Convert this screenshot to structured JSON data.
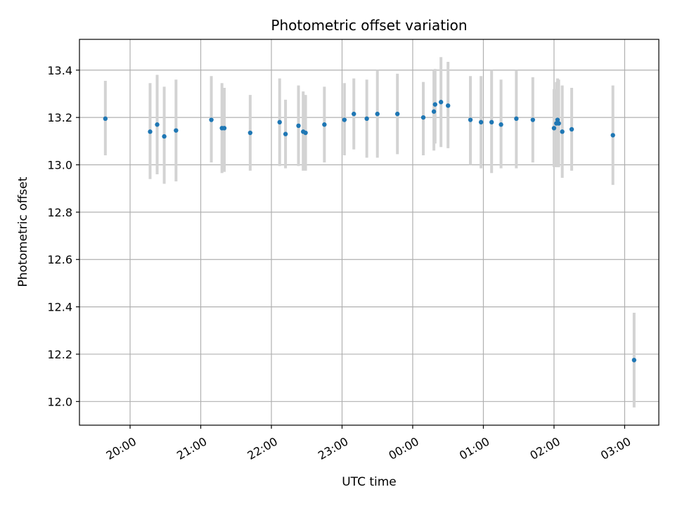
{
  "chart_data": {
    "type": "scatter",
    "title": "Photometric offset variation",
    "xlabel": "UTC time",
    "ylabel": "Photometric offset",
    "x_unit": "UTC time (HH:MM)",
    "xlim": [
      "19:17",
      "03:29"
    ],
    "ylim": [
      11.9,
      13.53
    ],
    "grid": true,
    "x_ticks": [
      "20:00",
      "21:00",
      "22:00",
      "23:00",
      "00:00",
      "01:00",
      "02:00",
      "03:00"
    ],
    "y_ticks": [
      12.0,
      12.2,
      12.4,
      12.6,
      12.8,
      13.0,
      13.2,
      13.4
    ],
    "y_tick_labels": [
      "12.0",
      "12.2",
      "12.4",
      "12.6",
      "12.8",
      "13.0",
      "13.2",
      "13.4"
    ],
    "colors": {
      "point": "#1f77b4",
      "error_bar": "#d3d3d3",
      "grid": "#b0b0b0"
    },
    "series": [
      {
        "points": [
          {
            "x": "19:39",
            "y": 13.195,
            "ylo": 13.04,
            "yhi": 13.355
          },
          {
            "x": "20:17",
            "y": 13.14,
            "ylo": 12.94,
            "yhi": 13.345
          },
          {
            "x": "20:23",
            "y": 13.17,
            "ylo": 12.96,
            "yhi": 13.38
          },
          {
            "x": "20:29",
            "y": 13.12,
            "ylo": 12.92,
            "yhi": 13.33
          },
          {
            "x": "20:39",
            "y": 13.145,
            "ylo": 12.93,
            "yhi": 13.36
          },
          {
            "x": "21:09",
            "y": 13.19,
            "ylo": 13.01,
            "yhi": 13.375
          },
          {
            "x": "21:18",
            "y": 13.155,
            "ylo": 12.965,
            "yhi": 13.345
          },
          {
            "x": "21:20",
            "y": 13.155,
            "ylo": 12.97,
            "yhi": 13.325
          },
          {
            "x": "21:42",
            "y": 13.135,
            "ylo": 12.975,
            "yhi": 13.295
          },
          {
            "x": "22:07",
            "y": 13.18,
            "ylo": 12.995,
            "yhi": 13.365
          },
          {
            "x": "22:12",
            "y": 13.13,
            "ylo": 12.985,
            "yhi": 13.275
          },
          {
            "x": "22:23",
            "y": 13.165,
            "ylo": 12.995,
            "yhi": 13.335
          },
          {
            "x": "22:27",
            "y": 13.14,
            "ylo": 12.975,
            "yhi": 13.31
          },
          {
            "x": "22:29",
            "y": 13.135,
            "ylo": 12.975,
            "yhi": 13.295
          },
          {
            "x": "22:45",
            "y": 13.17,
            "ylo": 13.01,
            "yhi": 13.33
          },
          {
            "x": "23:02",
            "y": 13.19,
            "ylo": 13.04,
            "yhi": 13.345
          },
          {
            "x": "23:10",
            "y": 13.215,
            "ylo": 13.065,
            "yhi": 13.365
          },
          {
            "x": "23:21",
            "y": 13.195,
            "ylo": 13.03,
            "yhi": 13.36
          },
          {
            "x": "23:30",
            "y": 13.215,
            "ylo": 13.03,
            "yhi": 13.4
          },
          {
            "x": "23:47",
            "y": 13.215,
            "ylo": 13.045,
            "yhi": 13.385
          },
          {
            "x": "00:09",
            "y": 13.2,
            "ylo": 13.04,
            "yhi": 13.35
          },
          {
            "x": "00:18",
            "y": 13.225,
            "ylo": 13.06,
            "yhi": 13.4
          },
          {
            "x": "00:19",
            "y": 13.255,
            "ylo": 13.09,
            "yhi": 13.405
          },
          {
            "x": "00:24",
            "y": 13.265,
            "ylo": 13.075,
            "yhi": 13.455
          },
          {
            "x": "00:30",
            "y": 13.25,
            "ylo": 13.07,
            "yhi": 13.435
          },
          {
            "x": "00:49",
            "y": 13.19,
            "ylo": 13.0,
            "yhi": 13.375
          },
          {
            "x": "00:58",
            "y": 13.18,
            "ylo": 12.985,
            "yhi": 13.375
          },
          {
            "x": "01:07",
            "y": 13.18,
            "ylo": 12.965,
            "yhi": 13.4
          },
          {
            "x": "01:15",
            "y": 13.17,
            "ylo": 12.985,
            "yhi": 13.36
          },
          {
            "x": "01:28",
            "y": 13.195,
            "ylo": 12.985,
            "yhi": 13.4
          },
          {
            "x": "01:42",
            "y": 13.19,
            "ylo": 13.01,
            "yhi": 13.37
          },
          {
            "x": "02:00",
            "y": 13.155,
            "ylo": 12.99,
            "yhi": 13.32
          },
          {
            "x": "02:02",
            "y": 13.175,
            "ylo": 12.99,
            "yhi": 13.35
          },
          {
            "x": "02:03",
            "y": 13.19,
            "ylo": 12.995,
            "yhi": 13.365
          },
          {
            "x": "02:04",
            "y": 13.175,
            "ylo": 12.99,
            "yhi": 13.36
          },
          {
            "x": "02:07",
            "y": 13.14,
            "ylo": 12.945,
            "yhi": 13.335
          },
          {
            "x": "02:15",
            "y": 13.15,
            "ylo": 12.975,
            "yhi": 13.325
          },
          {
            "x": "02:50",
            "y": 13.125,
            "ylo": 12.915,
            "yhi": 13.335
          },
          {
            "x": "03:08",
            "y": 12.175,
            "ylo": 11.975,
            "yhi": 12.375
          }
        ]
      }
    ]
  }
}
